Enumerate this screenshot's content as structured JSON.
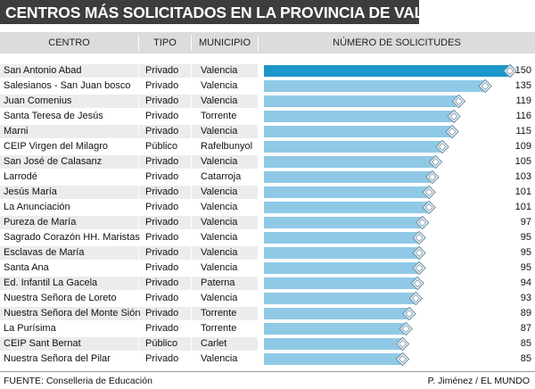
{
  "title": "CENTROS MÁS SOLICITADOS EN LA PROVINCIA DE VALENCIA",
  "headers": {
    "centro": "CENTRO",
    "tipo": "TIPO",
    "municipio": "MUNICIPIO",
    "solicitudes": "NÚMERO DE SOLICITUDES"
  },
  "colors": {
    "bar": "#8fc9e6",
    "bar_top": "#1c97c9",
    "title_bg": "#3d3d3d",
    "header_bg": "#dcdcdc",
    "row_alt": "#ececec"
  },
  "chart_data": {
    "type": "bar",
    "orientation": "horizontal",
    "xlim": [
      0,
      150
    ],
    "rows": [
      {
        "centro": "San Antonio Abad",
        "tipo": "Privado",
        "municipio": "Valencia",
        "value": 150
      },
      {
        "centro": "Salesianos - San Juan bosco",
        "tipo": "Privado",
        "municipio": "Valencia",
        "value": 135
      },
      {
        "centro": "Juan Comenius",
        "tipo": "Privado",
        "municipio": "Valencia",
        "value": 119
      },
      {
        "centro": "Santa Teresa de Jesús",
        "tipo": "Privado",
        "municipio": "Torrente",
        "value": 116
      },
      {
        "centro": "Marni",
        "tipo": "Privado",
        "municipio": "Valencia",
        "value": 115
      },
      {
        "centro": "CEIP Virgen del Milagro",
        "tipo": "Público",
        "municipio": "Rafelbunyol",
        "value": 109
      },
      {
        "centro": "San José de Calasanz",
        "tipo": "Privado",
        "municipio": "Valencia",
        "value": 105
      },
      {
        "centro": "Larrodé",
        "tipo": "Privado",
        "municipio": "Catarroja",
        "value": 103
      },
      {
        "centro": "Jesús María",
        "tipo": "Privado",
        "municipio": "Valencia",
        "value": 101
      },
      {
        "centro": "La Anunciación",
        "tipo": "Privado",
        "municipio": "Valencia",
        "value": 101
      },
      {
        "centro": "Pureza de María",
        "tipo": "Privado",
        "municipio": "Valencia",
        "value": 97
      },
      {
        "centro": "Sagrado Corazón HH. Maristas",
        "tipo": "Privado",
        "municipio": "Valencia",
        "value": 95
      },
      {
        "centro": "Esclavas de María",
        "tipo": "Privado",
        "municipio": "Valencia",
        "value": 95
      },
      {
        "centro": "Santa Ana",
        "tipo": "Privado",
        "municipio": "Valencia",
        "value": 95
      },
      {
        "centro": "Ed. Infantil La Gacela",
        "tipo": "Privado",
        "municipio": "Paterna",
        "value": 94
      },
      {
        "centro": "Nuestra Señora de Loreto",
        "tipo": "Privado",
        "municipio": "Valencia",
        "value": 93
      },
      {
        "centro": "Nuestra Señora del Monte Sión",
        "tipo": "Privado",
        "municipio": "Torrente",
        "value": 89
      },
      {
        "centro": "La Purísima",
        "tipo": "Privado",
        "municipio": "Torrente",
        "value": 87
      },
      {
        "centro": "CEIP Sant Bernat",
        "tipo": "Público",
        "municipio": "Carlet",
        "value": 85
      },
      {
        "centro": "Nuestra Señora del Pilar",
        "tipo": "Privado",
        "municipio": "Valencia",
        "value": 85
      }
    ]
  },
  "footer": {
    "source": "FUENTE: Conselleria de Educación",
    "credit": "P. Jiménez / EL MUNDO"
  }
}
